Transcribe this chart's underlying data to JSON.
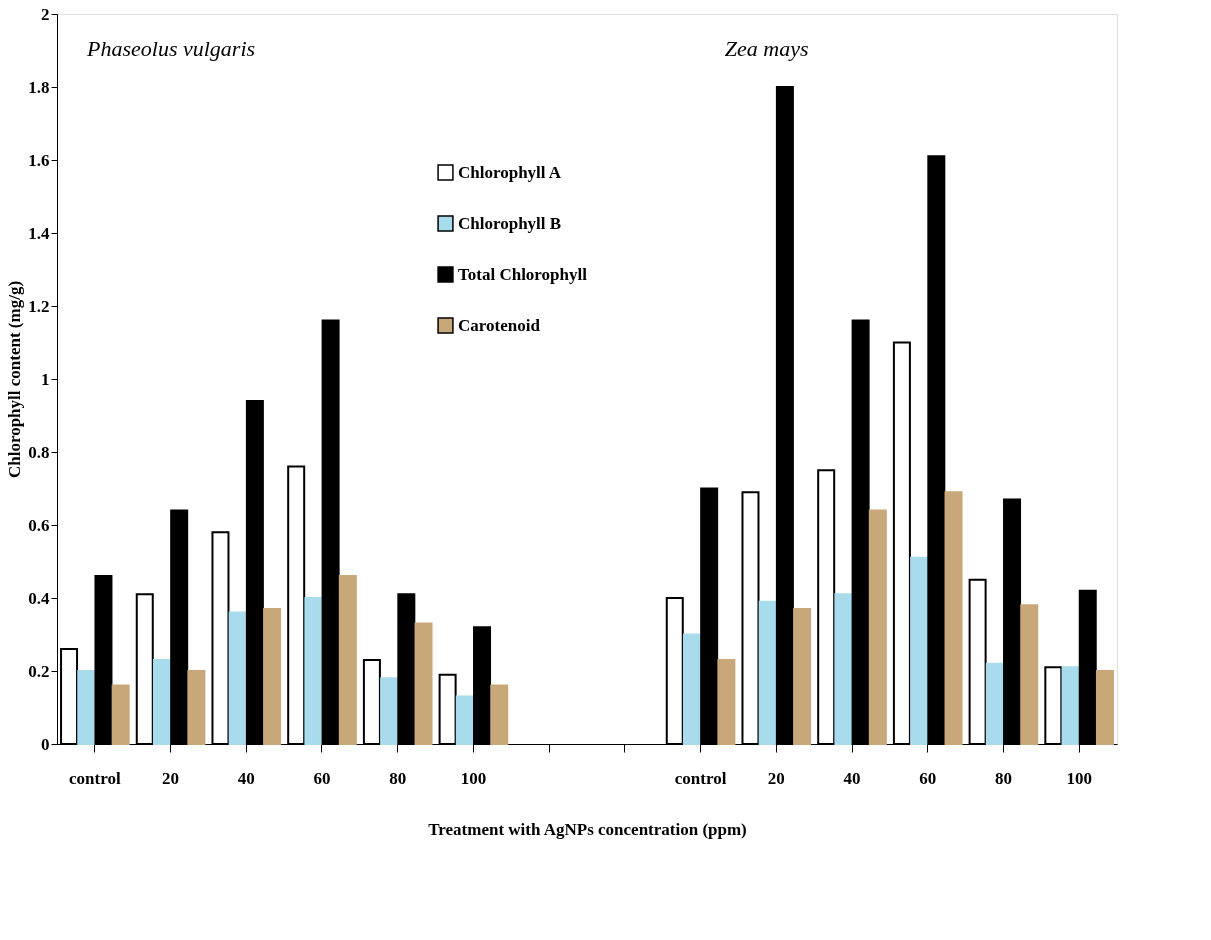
{
  "chart_data": {
    "type": "bar",
    "xlabel": "Treatment with AgNPs concentration (ppm)",
    "ylabel": "Chlorophyll content (mg/g)",
    "annotations": [
      "Phaseolus vulgaris",
      "Zea mays"
    ],
    "categories": [
      "control",
      "20",
      "40",
      "60",
      "80",
      "100",
      null,
      null,
      "control",
      "20",
      "40",
      "60",
      "80",
      "100"
    ],
    "series": [
      {
        "name": "Chlorophyll A",
        "color": "#ffffff",
        "values": [
          0.26,
          0.41,
          0.58,
          0.76,
          0.23,
          0.19,
          null,
          null,
          0.4,
          0.69,
          0.75,
          1.1,
          0.45,
          0.21
        ]
      },
      {
        "name": "Chlorophyll B",
        "color": "#a8dcec",
        "values": [
          0.2,
          0.23,
          0.36,
          0.4,
          0.18,
          0.13,
          null,
          null,
          0.3,
          0.39,
          0.41,
          0.51,
          0.22,
          0.21
        ]
      },
      {
        "name": "Total Chlorophyll",
        "color": "#000000",
        "values": [
          0.46,
          0.64,
          0.94,
          1.16,
          0.41,
          0.32,
          null,
          null,
          0.7,
          1.8,
          1.16,
          1.61,
          0.67,
          0.42
        ]
      },
      {
        "name": "Carotenoid",
        "color": "#c8a878",
        "values": [
          0.16,
          0.2,
          0.37,
          0.46,
          0.33,
          0.16,
          null,
          null,
          0.23,
          0.37,
          0.64,
          0.69,
          0.38,
          0.2
        ]
      }
    ],
    "ylim": [
      0,
      2
    ],
    "yticks": [
      0,
      0.2,
      0.4,
      0.6,
      0.8,
      1,
      1.2,
      1.4,
      1.6,
      1.8,
      2
    ],
    "grid": false,
    "legend": "top"
  }
}
